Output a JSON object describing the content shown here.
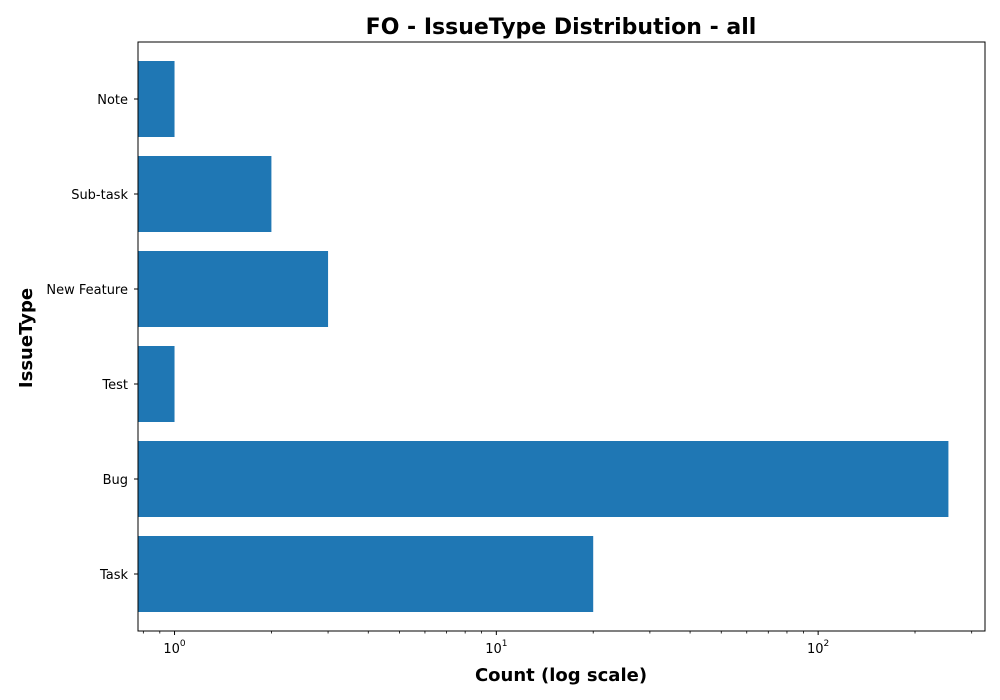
{
  "chart_data": {
    "type": "bar",
    "orientation": "horizontal",
    "title": "FO - IssueType Distribution - all",
    "xlabel": "Count (log scale)",
    "ylabel": "IssueType",
    "x_scale": "log",
    "xlim": [
      0.77,
      330
    ],
    "x_ticks": [
      {
        "value": 1,
        "base": "10",
        "exp": "0"
      },
      {
        "value": 10,
        "base": "10",
        "exp": "1"
      },
      {
        "value": 100,
        "base": "10",
        "exp": "2"
      }
    ],
    "categories": [
      "Task",
      "Bug",
      "Test",
      "New Feature",
      "Sub-task",
      "Note"
    ],
    "values": [
      20,
      254,
      1,
      3,
      2,
      1
    ],
    "bar_color": "#1f77b4",
    "grid": false
  }
}
